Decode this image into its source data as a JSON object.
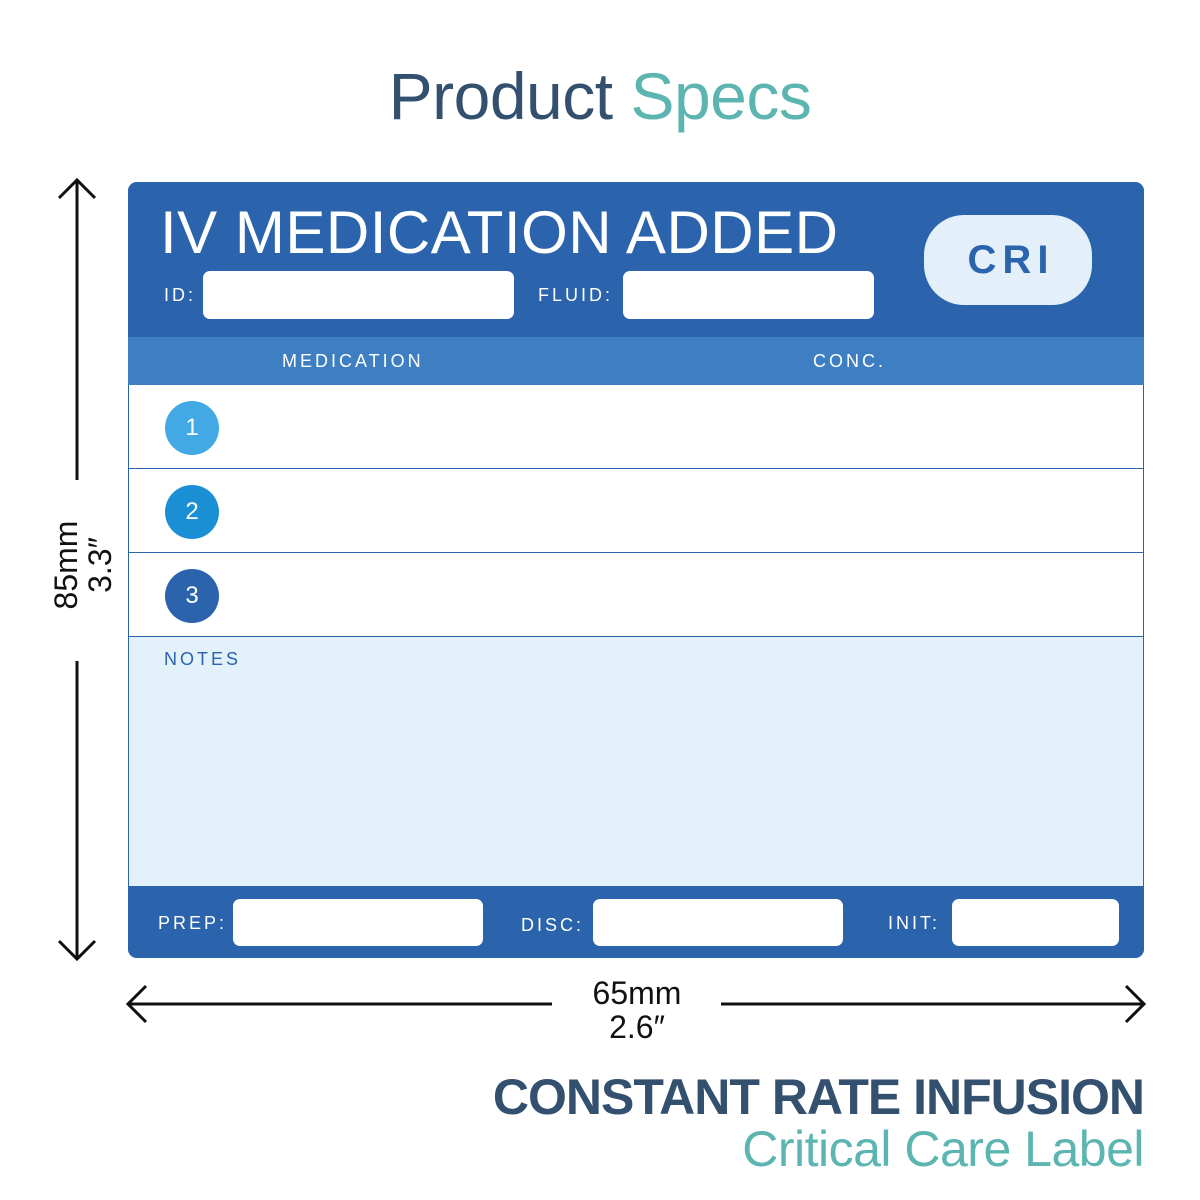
{
  "header": {
    "title_part1": "Product",
    "title_part2": "Specs"
  },
  "label": {
    "title": "IV MEDICATION ADDED",
    "badge": "CRI",
    "fields": {
      "id": "ID:",
      "fluid": "FLUID:"
    },
    "columns": {
      "medication": "MEDICATION",
      "conc": "CONC."
    },
    "rows": [
      {
        "number": "1",
        "color": "#43a9e5"
      },
      {
        "number": "2",
        "color": "#1b8fd3"
      },
      {
        "number": "3",
        "color": "#2b64ad"
      }
    ],
    "notes_label": "NOTES",
    "footer": {
      "prep": "PREP:",
      "disc": "DISC:",
      "init": "INIT:"
    }
  },
  "dimensions": {
    "height_mm": "85mm",
    "height_in": "3.3″",
    "width_mm": "65mm",
    "width_in": "2.6″"
  },
  "product": {
    "name": "CONSTANT RATE INFUSION",
    "subtitle": "Critical Care Label"
  },
  "colors": {
    "label_blue": "#2b64ad",
    "header_band": "#3e7fc3",
    "notes_bg": "#e3f1fb",
    "title_dark": "#34506f",
    "title_teal": "#5cb5b0"
  }
}
